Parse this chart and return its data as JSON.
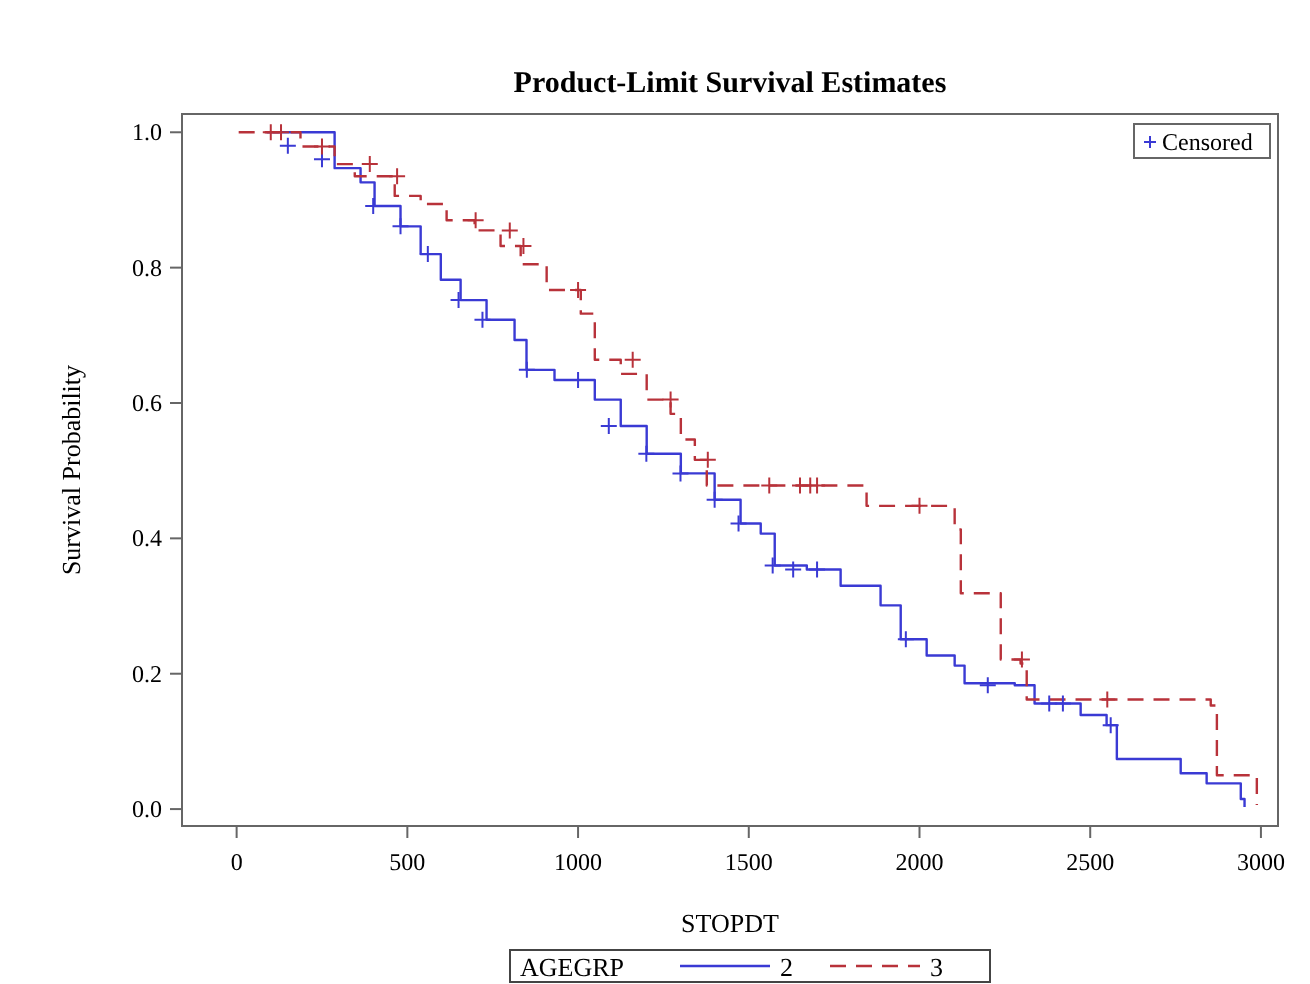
{
  "chart_data": {
    "type": "step",
    "title": "Product-Limit Survival Estimates",
    "xlabel": "STOPDT",
    "ylabel": "Survival Probability",
    "legend_title": "AGEGRP",
    "legend": "bottom",
    "grid": false,
    "xlim": [
      -160,
      3050
    ],
    "xticks": [
      0,
      500,
      1000,
      1500,
      2000,
      2500,
      3000
    ],
    "ylim": [
      -0.025,
      1.027
    ],
    "yticks": [
      {
        "value": 0,
        "label": "0.0"
      },
      {
        "value": 0.2,
        "label": "0.2"
      },
      {
        "value": 0.4,
        "label": "0.4"
      },
      {
        "value": 0.6,
        "label": "0.6"
      },
      {
        "value": 0.8,
        "label": "0.8"
      },
      {
        "value": 1,
        "label": "1.0"
      }
    ],
    "series": [
      {
        "name": "2",
        "color": "#3a3ad4",
        "line_style": "solid",
        "x": [
          88,
          287,
          363,
          404,
          480,
          539,
          598,
          656,
          732,
          814,
          849,
          931,
          1049,
          1125,
          1201,
          1301,
          1400,
          1476,
          1535,
          1576,
          1670,
          1769,
          1886,
          1945,
          2021,
          2103,
          2132,
          2279,
          2337,
          2472,
          2548,
          2578,
          2765,
          2841,
          2941,
          2952
        ],
        "values": [
          1.0,
          0.947,
          0.926,
          0.891,
          0.861,
          0.82,
          0.782,
          0.752,
          0.723,
          0.693,
          0.649,
          0.634,
          0.605,
          0.566,
          0.525,
          0.496,
          0.457,
          0.422,
          0.407,
          0.36,
          0.354,
          0.33,
          0.301,
          0.251,
          0.227,
          0.212,
          0.186,
          0.183,
          0.156,
          0.139,
          0.124,
          0.074,
          0.053,
          0.038,
          0.015,
          0.003
        ]
      },
      {
        "name": "3",
        "color": "#b8323a",
        "line_style": "dashed",
        "x": [
          6,
          187,
          287,
          346,
          463,
          539,
          615,
          697,
          773,
          832,
          908,
          1008,
          1049,
          1125,
          1201,
          1271,
          1301,
          1342,
          1377,
          1845,
          2103,
          2121,
          2238,
          2296,
          2314,
          2853,
          2871,
          2988
        ],
        "values": [
          1.0,
          0.979,
          0.953,
          0.935,
          0.906,
          0.894,
          0.87,
          0.855,
          0.832,
          0.805,
          0.767,
          0.732,
          0.664,
          0.643,
          0.605,
          0.584,
          0.546,
          0.516,
          0.478,
          0.448,
          0.413,
          0.319,
          0.221,
          0.215,
          0.162,
          0.153,
          0.05,
          0.006
        ]
      },
      {
        "name": "Censored",
        "type": "scatter",
        "color": "#3a3ad4",
        "marker": "cross",
        "x": [
          150,
          250,
          400,
          480,
          560,
          650,
          720,
          850,
          1000,
          1090,
          1200,
          1300,
          1400,
          1470,
          1570,
          1630,
          1700,
          1960,
          2200,
          2380,
          2420,
          2560
        ],
        "values": [
          0.98,
          0.96,
          0.891,
          0.861,
          0.82,
          0.752,
          0.723,
          0.649,
          0.634,
          0.566,
          0.525,
          0.496,
          0.457,
          0.422,
          0.36,
          0.354,
          0.354,
          0.251,
          0.183,
          0.156,
          0.156,
          0.124
        ]
      },
      {
        "type": "scatter",
        "color": "#b8323a",
        "marker": "cross",
        "x": [
          100,
          130,
          250,
          390,
          470,
          700,
          800,
          840,
          1000,
          1160,
          1271,
          1380,
          1560,
          1650,
          1680,
          1700,
          2000,
          2300,
          2550
        ],
        "values": [
          1.0,
          1.0,
          0.979,
          0.953,
          0.935,
          0.87,
          0.855,
          0.832,
          0.767,
          0.664,
          0.605,
          0.516,
          0.478,
          0.478,
          0.478,
          0.478,
          0.448,
          0.221,
          0.162
        ]
      }
    ]
  }
}
